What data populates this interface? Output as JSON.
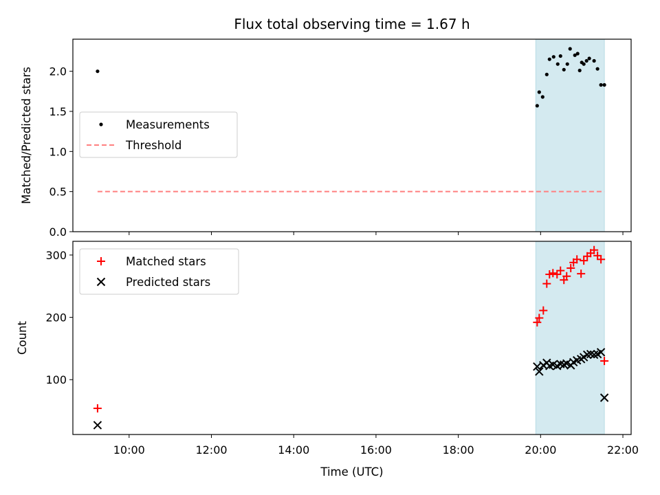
{
  "chart_data": [
    {
      "type": "scatter",
      "title": "Flux total observing time = 1.67 h",
      "xlabel": "",
      "ylabel": "Matched/Predicted stars",
      "ylim": [
        0,
        2.4
      ],
      "yticks": [
        "0.0",
        "0.5",
        "1.0",
        "1.5",
        "2.0"
      ],
      "xlim": [
        "08:38",
        "22:12"
      ],
      "highlight_span": {
        "start": "19:53",
        "end": "21:33",
        "color": "#d4eaf0"
      },
      "legend_position": "center-left",
      "series": [
        {
          "name": "Measurements",
          "marker": "dot",
          "color": "#000000",
          "x": [
            "09:14",
            "19:55",
            "19:58",
            "20:03",
            "20:09",
            "20:13",
            "20:19",
            "20:25",
            "20:29",
            "20:34",
            "20:39",
            "20:43",
            "20:50",
            "20:54",
            "20:57",
            "21:00",
            "21:03",
            "21:07",
            "21:11",
            "21:18",
            "21:23",
            "21:28",
            "21:33"
          ],
          "y": [
            2.0,
            1.57,
            1.74,
            1.68,
            1.96,
            2.15,
            2.18,
            2.09,
            2.19,
            2.02,
            2.09,
            2.28,
            2.2,
            2.22,
            2.01,
            2.11,
            2.09,
            2.13,
            2.16,
            2.13,
            2.03,
            1.83,
            1.83
          ]
        },
        {
          "name": "Threshold",
          "style": "dashed-line",
          "color": "#ff7f7f",
          "x": [
            "09:14",
            "21:33"
          ],
          "y": [
            0.5,
            0.5
          ]
        }
      ]
    },
    {
      "type": "scatter",
      "title": "",
      "xlabel": "Time (UTC)",
      "ylabel": "Count",
      "ylim": [
        12,
        322
      ],
      "yticks": [
        "100",
        "200",
        "300"
      ],
      "xticks": [
        "10:00",
        "12:00",
        "14:00",
        "16:00",
        "18:00",
        "20:00",
        "22:00"
      ],
      "xlim": [
        "08:38",
        "22:12"
      ],
      "highlight_span": {
        "start": "19:53",
        "end": "21:33",
        "color": "#d4eaf0"
      },
      "legend_position": "top-left",
      "series": [
        {
          "name": "Matched stars",
          "marker": "plus",
          "color": "#ff0000",
          "x": [
            "09:14",
            "19:55",
            "19:58",
            "20:04",
            "20:09",
            "20:13",
            "20:18",
            "20:24",
            "20:29",
            "20:34",
            "20:38",
            "20:44",
            "20:48",
            "20:53",
            "20:59",
            "21:03",
            "21:08",
            "21:13",
            "21:18",
            "21:23",
            "21:28",
            "21:33"
          ],
          "y": [
            54,
            192,
            199,
            211,
            254,
            269,
            271,
            269,
            275,
            260,
            266,
            279,
            288,
            293,
            270,
            291,
            298,
            303,
            308,
            299,
            293,
            130
          ]
        },
        {
          "name": "Predicted stars",
          "marker": "x",
          "color": "#000000",
          "x": [
            "09:14",
            "19:55",
            "19:58",
            "20:04",
            "20:09",
            "20:13",
            "20:18",
            "20:24",
            "20:29",
            "20:34",
            "20:38",
            "20:44",
            "20:48",
            "20:53",
            "20:59",
            "21:03",
            "21:08",
            "21:13",
            "21:18",
            "21:23",
            "21:28",
            "21:33"
          ],
          "y": [
            27,
            121,
            113,
            123,
            127,
            122,
            124,
            122,
            125,
            124,
            126,
            123,
            128,
            131,
            133,
            136,
            140,
            141,
            140,
            141,
            144,
            71
          ]
        }
      ]
    }
  ]
}
